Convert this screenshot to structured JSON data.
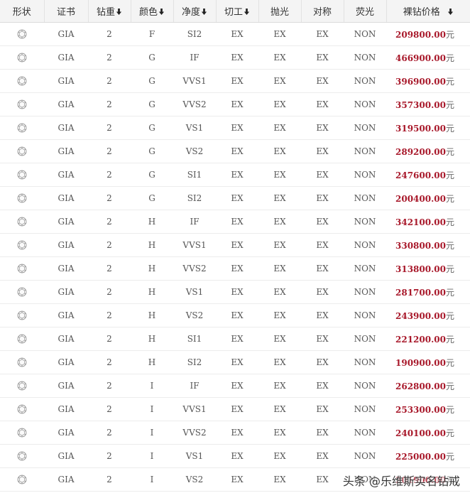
{
  "table": {
    "headers": [
      "形状",
      "证书",
      "钻重",
      "颜色",
      "净度",
      "切工",
      "抛光",
      "对称",
      "荧光",
      "裸钻价格"
    ],
    "sortable": [
      false,
      false,
      true,
      true,
      true,
      true,
      false,
      false,
      false,
      true
    ],
    "sort_icon": "down-arrow-icon",
    "shape_icon": "round-diamond-icon",
    "unit": "元",
    "rows": [
      {
        "cert": "GIA",
        "carat": "2",
        "color": "F",
        "clarity": "SI2",
        "cut": "EX",
        "polish": "EX",
        "symmetry": "EX",
        "fluor": "NON",
        "price": "209800.00"
      },
      {
        "cert": "GIA",
        "carat": "2",
        "color": "G",
        "clarity": "IF",
        "cut": "EX",
        "polish": "EX",
        "symmetry": "EX",
        "fluor": "NON",
        "price": "466900.00"
      },
      {
        "cert": "GIA",
        "carat": "2",
        "color": "G",
        "clarity": "VVS1",
        "cut": "EX",
        "polish": "EX",
        "symmetry": "EX",
        "fluor": "NON",
        "price": "396900.00"
      },
      {
        "cert": "GIA",
        "carat": "2",
        "color": "G",
        "clarity": "VVS2",
        "cut": "EX",
        "polish": "EX",
        "symmetry": "EX",
        "fluor": "NON",
        "price": "357300.00"
      },
      {
        "cert": "GIA",
        "carat": "2",
        "color": "G",
        "clarity": "VS1",
        "cut": "EX",
        "polish": "EX",
        "symmetry": "EX",
        "fluor": "NON",
        "price": "319500.00"
      },
      {
        "cert": "GIA",
        "carat": "2",
        "color": "G",
        "clarity": "VS2",
        "cut": "EX",
        "polish": "EX",
        "symmetry": "EX",
        "fluor": "NON",
        "price": "289200.00"
      },
      {
        "cert": "GIA",
        "carat": "2",
        "color": "G",
        "clarity": "SI1",
        "cut": "EX",
        "polish": "EX",
        "symmetry": "EX",
        "fluor": "NON",
        "price": "247600.00"
      },
      {
        "cert": "GIA",
        "carat": "2",
        "color": "G",
        "clarity": "SI2",
        "cut": "EX",
        "polish": "EX",
        "symmetry": "EX",
        "fluor": "NON",
        "price": "200400.00"
      },
      {
        "cert": "GIA",
        "carat": "2",
        "color": "H",
        "clarity": "IF",
        "cut": "EX",
        "polish": "EX",
        "symmetry": "EX",
        "fluor": "NON",
        "price": "342100.00"
      },
      {
        "cert": "GIA",
        "carat": "2",
        "color": "H",
        "clarity": "VVS1",
        "cut": "EX",
        "polish": "EX",
        "symmetry": "EX",
        "fluor": "NON",
        "price": "330800.00"
      },
      {
        "cert": "GIA",
        "carat": "2",
        "color": "H",
        "clarity": "VVS2",
        "cut": "EX",
        "polish": "EX",
        "symmetry": "EX",
        "fluor": "NON",
        "price": "313800.00"
      },
      {
        "cert": "GIA",
        "carat": "2",
        "color": "H",
        "clarity": "VS1",
        "cut": "EX",
        "polish": "EX",
        "symmetry": "EX",
        "fluor": "NON",
        "price": "281700.00"
      },
      {
        "cert": "GIA",
        "carat": "2",
        "color": "H",
        "clarity": "VS2",
        "cut": "EX",
        "polish": "EX",
        "symmetry": "EX",
        "fluor": "NON",
        "price": "243900.00"
      },
      {
        "cert": "GIA",
        "carat": "2",
        "color": "H",
        "clarity": "SI1",
        "cut": "EX",
        "polish": "EX",
        "symmetry": "EX",
        "fluor": "NON",
        "price": "221200.00"
      },
      {
        "cert": "GIA",
        "carat": "2",
        "color": "H",
        "clarity": "SI2",
        "cut": "EX",
        "polish": "EX",
        "symmetry": "EX",
        "fluor": "NON",
        "price": "190900.00"
      },
      {
        "cert": "GIA",
        "carat": "2",
        "color": "I",
        "clarity": "IF",
        "cut": "EX",
        "polish": "EX",
        "symmetry": "EX",
        "fluor": "NON",
        "price": "262800.00"
      },
      {
        "cert": "GIA",
        "carat": "2",
        "color": "I",
        "clarity": "VVS1",
        "cut": "EX",
        "polish": "EX",
        "symmetry": "EX",
        "fluor": "NON",
        "price": "253300.00"
      },
      {
        "cert": "GIA",
        "carat": "2",
        "color": "I",
        "clarity": "VVS2",
        "cut": "EX",
        "polish": "EX",
        "symmetry": "EX",
        "fluor": "NON",
        "price": "240100.00"
      },
      {
        "cert": "GIA",
        "carat": "2",
        "color": "I",
        "clarity": "VS1",
        "cut": "EX",
        "polish": "EX",
        "symmetry": "EX",
        "fluor": "NON",
        "price": "225000.00"
      },
      {
        "cert": "GIA",
        "carat": "2",
        "color": "I",
        "clarity": "VS2",
        "cut": "EX",
        "polish": "EX",
        "symmetry": "EX",
        "fluor": "NON",
        "price": "201900.00"
      }
    ]
  },
  "watermark": "头条 @乐维斯实名钻戒",
  "colors": {
    "price": "#a8182a",
    "header_bg": "#f4f4f4"
  }
}
